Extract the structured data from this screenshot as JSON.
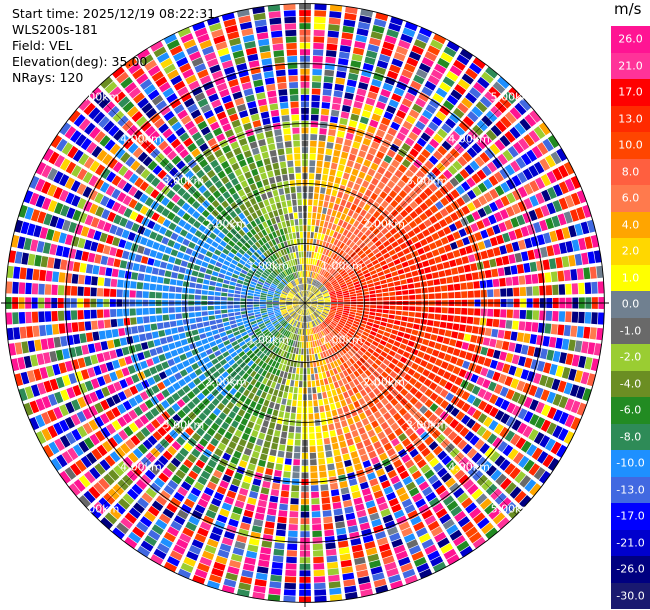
{
  "header": {
    "start_time": "Start time: 2025/12/19 08:22:31",
    "instrument": "WLS200s-181",
    "field": "Field: VEL",
    "elevation": "Elevation(deg): 35.00",
    "nrays": "NRays: 120"
  },
  "chart_data": {
    "type": "heatmap",
    "projection": "polar PPI (plan position indicator)",
    "field": "VEL",
    "units": "m/s",
    "elevation_deg": 35.0,
    "n_rays": 120,
    "range_rings_km": [
      1.0,
      2.0,
      3.0,
      4.0,
      5.0
    ],
    "ring_labels": [
      "1.00km",
      "2.00km",
      "3.00km",
      "4.00km",
      "5.00km"
    ],
    "colorbar": {
      "title": "m/s",
      "ticks": [
        "26.0",
        "21.0",
        "17.0",
        "13.0",
        "10.0",
        "8.0",
        "6.0",
        "4.0",
        "2.0",
        "1.0",
        "0.0",
        "-1.0",
        "-2.0",
        "-4.0",
        "-6.0",
        "-8.0",
        "-10.0",
        "-13.0",
        "-17.0",
        "-21.0",
        "-26.0",
        "-30.0"
      ],
      "colors": [
        "#ff1493",
        "#ff3399",
        "#ff0000",
        "#ff2a00",
        "#ff4500",
        "#ff5f3f",
        "#ff7a4d",
        "#ffa500",
        "#ffd700",
        "#ffff00",
        "#708090",
        "#696969",
        "#9acd32",
        "#6b8e23",
        "#228b22",
        "#2e8b57",
        "#1e90ff",
        "#4169e1",
        "#0000ff",
        "#0000cd",
        "#000080",
        "#191970"
      ]
    },
    "pattern_summary": "Near-range (inner ~2.5 km) coherent field: receding/positive (reds, pinks) to the east, approaching/negative (blues) to the west, green/yellow transition near north-south axis; outer ranges noisy with mixed colors."
  }
}
